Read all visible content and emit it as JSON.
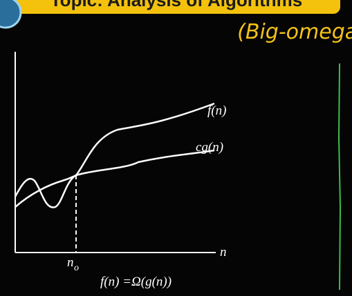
{
  "header": {
    "title": "Topic: Analysis of Algorithms"
  },
  "annotation": "(Big-omega)",
  "diagram": {
    "curve_upper_label": "f(n)",
    "curve_lower_label": "cg(n)",
    "x_axis_label": "n",
    "threshold_label": "n",
    "threshold_subscript": "o",
    "caption": "f(n) =Ω(g(n))"
  }
}
